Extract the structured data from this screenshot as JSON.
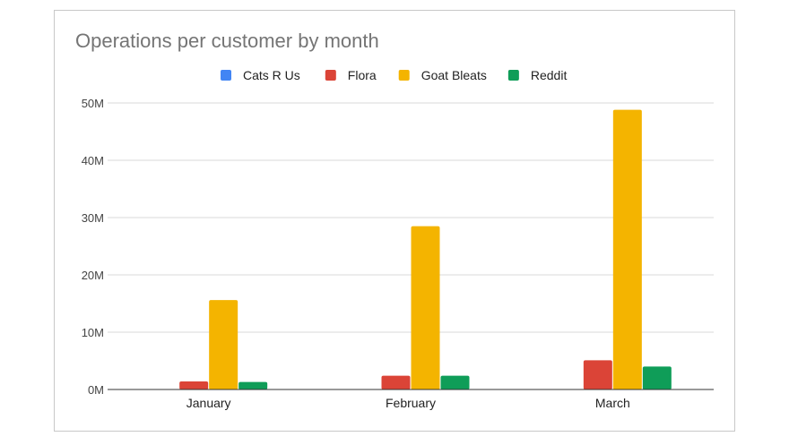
{
  "chart_data": {
    "type": "bar",
    "title": "Operations per customer by month",
    "xlabel": "",
    "ylabel": "",
    "categories": [
      "January",
      "February",
      "March"
    ],
    "series": [
      {
        "name": "Cats R Us",
        "color": "#4285f4",
        "values": [
          0,
          0,
          0
        ]
      },
      {
        "name": "Flora",
        "color": "#db4437",
        "values": [
          1400000,
          2400000,
          5100000
        ]
      },
      {
        "name": "Goat Bleats",
        "color": "#f4b400",
        "values": [
          15600000,
          28500000,
          48800000
        ]
      },
      {
        "name": "Reddit",
        "color": "#0f9d58",
        "values": [
          1300000,
          2400000,
          4000000
        ]
      }
    ],
    "ylim": [
      0,
      50000000
    ],
    "yticks": [
      0,
      10000000,
      20000000,
      30000000,
      40000000,
      50000000
    ],
    "ytick_labels": [
      "0M",
      "10M",
      "20M",
      "30M",
      "40M",
      "50M"
    ],
    "grid": true,
    "legend_position": "top"
  }
}
